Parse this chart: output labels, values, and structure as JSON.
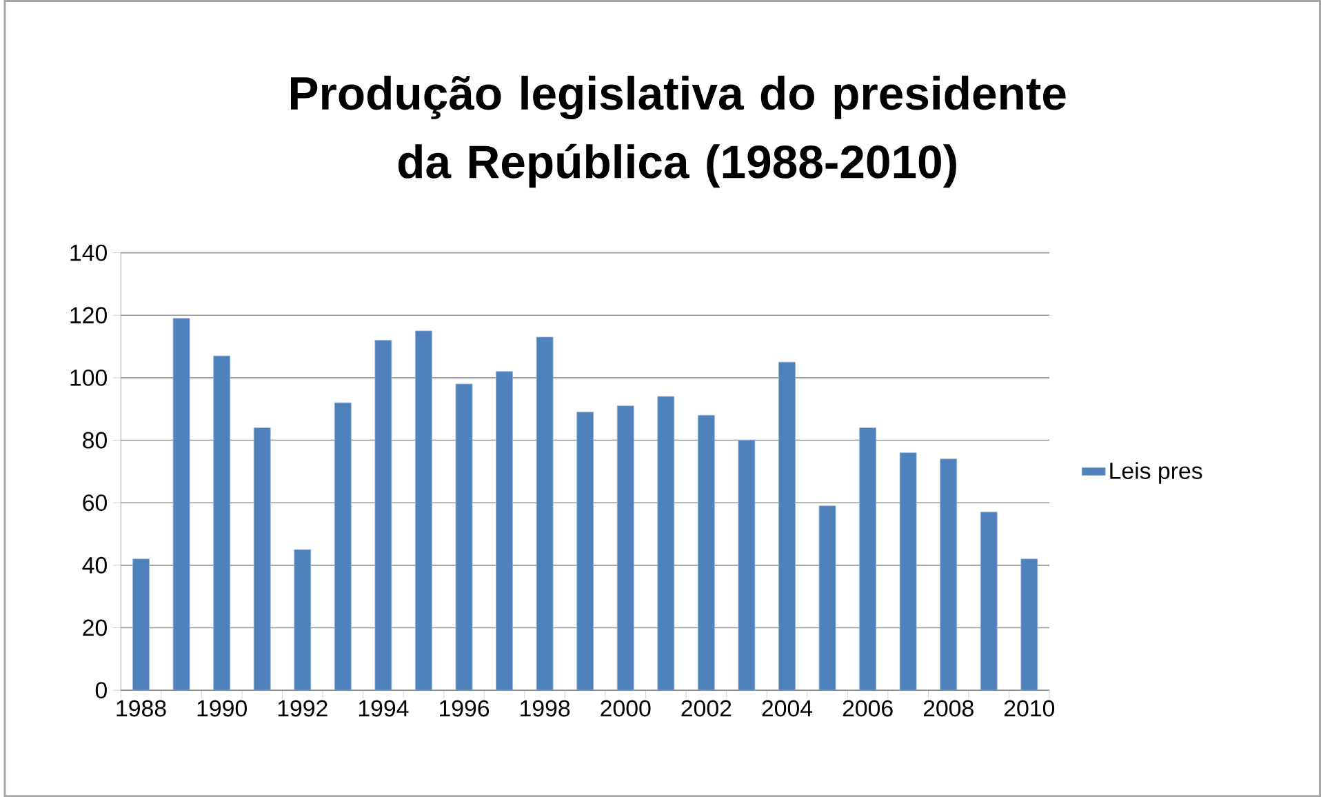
{
  "chart_data": {
    "type": "bar",
    "title": "Produção legislativa do presidente da República (1988-2010)",
    "categories": [
      "1988",
      null,
      "1990",
      null,
      "1992",
      null,
      "1994",
      null,
      "1996",
      null,
      "1998",
      null,
      "2000",
      null,
      "2002",
      null,
      "2004",
      null,
      "2006",
      null,
      "2008",
      null,
      "2010"
    ],
    "series": [
      {
        "name": "Leis pres",
        "color": "#4f81bd",
        "values": [
          42,
          119,
          107,
          84,
          45,
          92,
          112,
          115,
          98,
          102,
          113,
          89,
          91,
          94,
          88,
          80,
          105,
          59,
          84,
          76,
          74,
          57,
          42
        ]
      }
    ],
    "ylim": [
      0,
      140
    ],
    "yticks": [
      0,
      20,
      40,
      60,
      80,
      100,
      120,
      140
    ],
    "grid": "y",
    "legend": "right"
  }
}
